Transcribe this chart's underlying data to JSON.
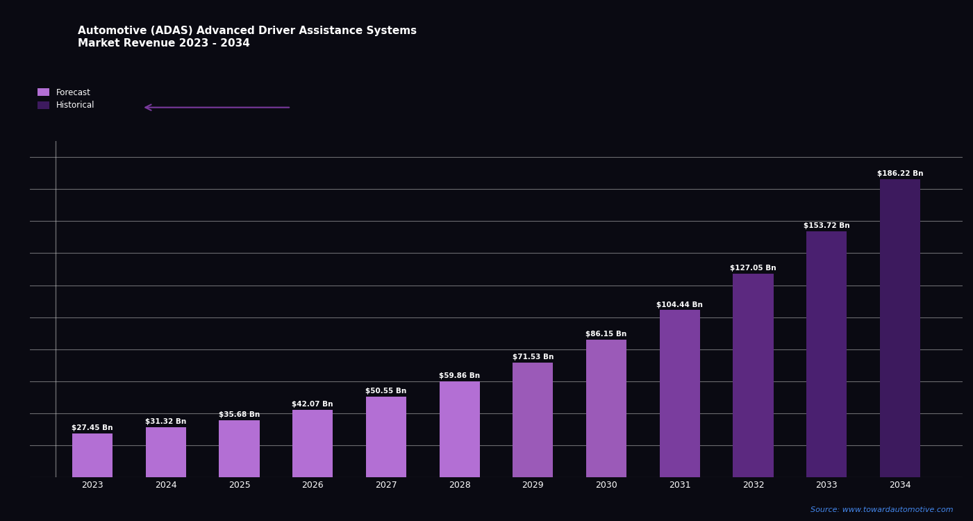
{
  "title": "Automotive (ADAS) Advanced Driver Assistance Systems\nMarket Revenue 2023 - 2034",
  "years": [
    "2023",
    "2024",
    "2025",
    "2026",
    "2027",
    "2028",
    "2029",
    "2030",
    "2031",
    "2032",
    "2033",
    "2034"
  ],
  "values": [
    27.45,
    31.32,
    35.68,
    42.07,
    50.55,
    59.86,
    71.53,
    86.15,
    104.44,
    127.05,
    153.72,
    186.22
  ],
  "bar_colors": [
    "#b36fd4",
    "#b36fd4",
    "#b36fd4",
    "#b36fd4",
    "#b36fd4",
    "#b36fd4",
    "#9b5ab8",
    "#9b5ab8",
    "#7a3d9e",
    "#5c2980",
    "#4a2070",
    "#3d1a5e"
  ],
  "ylim": [
    0,
    210
  ],
  "yticks": [
    0,
    20,
    40,
    60,
    80,
    100,
    120,
    140,
    160,
    180,
    200
  ],
  "background_color": "#0a0a12",
  "grid_color": "#cccccc",
  "text_color": "#ffffff",
  "label_fontsize": 7.5,
  "title_fontsize": 11,
  "source_text": "Source: www.towardautomotive.com",
  "legend_label1": "Forecast",
  "legend_label2": "Historical",
  "legend_color1": "#b36fd4",
  "legend_color2": "#3d1a5e",
  "arrow_color": "#7a3a9e"
}
